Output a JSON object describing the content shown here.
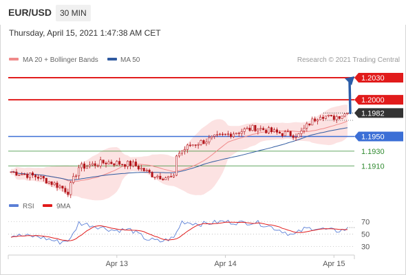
{
  "header": {
    "symbol": "EUR/USD",
    "timeframe": "30 MIN",
    "timestamp": "Thursday, April 15, 2021 1:47:38 AM CET"
  },
  "colors": {
    "resistance": "#e11b1b",
    "support": "#3b6fd6",
    "target": "#2f8a2f",
    "price_candle": "#b3141a",
    "ma20": "#f08a8a",
    "bollinger_fill": "#fbd6d6",
    "ma50": "#2f5aa0",
    "arrow": "#2a5ca8",
    "rsi": "#5b7fd6",
    "rsi_ma": "#e11b1b",
    "current_price_box": "#333333"
  },
  "chart_data": [
    {
      "type": "candlestick",
      "title": "",
      "legend": {
        "placement": "top-left",
        "items": [
          {
            "label": "MA 20 + Bollinger Bands",
            "color": "#f08a8a"
          },
          {
            "label": "MA 50",
            "color": "#2f5aa0"
          }
        ]
      },
      "copyright": "Research © 2021 Trading Central",
      "x": {
        "ticks": [
          "Apr 13",
          "Apr 14",
          "Apr 15"
        ],
        "tick_index": [
          39,
          79,
          119
        ],
        "bar_count": 125
      },
      "y": {
        "range": [
          1.187,
          1.2045
        ]
      },
      "grid": false,
      "levels": [
        {
          "value": 1.203,
          "label": "1.2030",
          "role": "resistance"
        },
        {
          "value": 1.2,
          "label": "1.2000",
          "role": "resistance"
        },
        {
          "value": 1.1982,
          "label": "1.1982",
          "role": "current"
        },
        {
          "value": 1.195,
          "label": "1.1950",
          "role": "support"
        },
        {
          "value": 1.193,
          "label": "1.1930",
          "role": "target"
        },
        {
          "value": 1.191,
          "label": "1.1910",
          "role": "target"
        }
      ],
      "projection": {
        "from_value": 1.1982,
        "to_value": 1.203
      },
      "price_anchors": [
        [
          0,
          1.1902
        ],
        [
          10,
          1.1895
        ],
        [
          18,
          1.1882
        ],
        [
          21,
          1.1875
        ],
        [
          25,
          1.1908
        ],
        [
          35,
          1.1915
        ],
        [
          45,
          1.1912
        ],
        [
          52,
          1.1898
        ],
        [
          56,
          1.1895
        ],
        [
          60,
          1.1893
        ],
        [
          61,
          1.1925
        ],
        [
          66,
          1.1938
        ],
        [
          75,
          1.1948
        ],
        [
          82,
          1.1955
        ],
        [
          90,
          1.1962
        ],
        [
          98,
          1.1955
        ],
        [
          106,
          1.1952
        ],
        [
          110,
          1.1968
        ],
        [
          114,
          1.198
        ],
        [
          118,
          1.1975
        ],
        [
          124,
          1.1982
        ]
      ]
    },
    {
      "type": "line",
      "title": "",
      "legend": {
        "placement": "top-left",
        "items": [
          {
            "label": "RSI",
            "color": "#5b7fd6"
          },
          {
            "label": "9MA",
            "color": "#e11b1b"
          }
        ]
      },
      "y": {
        "range": [
          23,
          78
        ],
        "ticks": [
          "70",
          "50",
          "30"
        ],
        "tick_values": [
          70,
          50,
          30
        ]
      },
      "grid": false,
      "rsi_anchors": [
        [
          0,
          48
        ],
        [
          10,
          46
        ],
        [
          18,
          37
        ],
        [
          22,
          42
        ],
        [
          25,
          68
        ],
        [
          32,
          62
        ],
        [
          38,
          56
        ],
        [
          44,
          57
        ],
        [
          50,
          42
        ],
        [
          55,
          38
        ],
        [
          60,
          44
        ],
        [
          63,
          70
        ],
        [
          70,
          66
        ],
        [
          78,
          70
        ],
        [
          85,
          68
        ],
        [
          90,
          69
        ],
        [
          94,
          64
        ],
        [
          100,
          55
        ],
        [
          104,
          48
        ],
        [
          108,
          58
        ],
        [
          112,
          60
        ],
        [
          116,
          57
        ],
        [
          120,
          55
        ],
        [
          124,
          58
        ]
      ]
    }
  ]
}
